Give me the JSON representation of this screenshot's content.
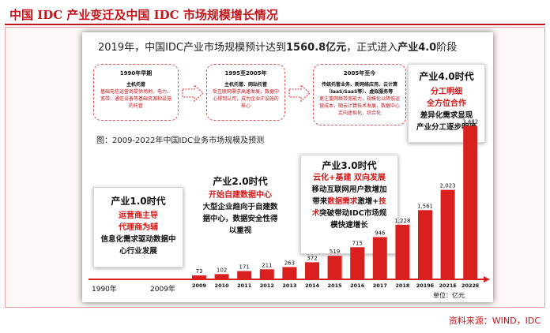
{
  "title": "中国 IDC 产业变迁及中国 IDC 市场规模增长情况",
  "headline": {
    "prefix": "2019年，中国IDC产业市场规模预计达到",
    "value": "1560.8亿元",
    "middle": "，正式进入",
    "phase": "产业4.0",
    "suffix": "阶段"
  },
  "stages": [
    {
      "period": "1990年早期",
      "label": "主机托管",
      "desc": "基础电信运营商提供场地、电力、宽带、通信设备等基础资源和设施的托管"
    },
    {
      "period": "1995至2005年",
      "label": "主机托管、网站托管",
      "desc": "受互联网需求高速发展，数据中心得到认可，成为企业IT设施的核心"
    },
    {
      "period": "2005年至今",
      "label": "传统托管业务、新网络应用、云计算（IaaS/SaaS等）、虚拟服务等",
      "desc": "更注重网络带宽能力，规模化以降低运营成本，随云计算技术发展，数据中心走向虚拟化、综合化"
    }
  ],
  "eras": {
    "era1": {
      "name": "产业1.0时代",
      "red": [
        "运营商主导",
        "代理商为辅"
      ],
      "body": [
        "信息化需求驱动数据中",
        "心行业发展"
      ]
    },
    "era2": {
      "name": "产业2.0时代",
      "red": [
        "开始自建数据中心"
      ],
      "body": [
        "大型企业趋向于自建数",
        "据中心，数据安全性得",
        "以重视"
      ]
    },
    "era3": {
      "name": "产业3.0时代",
      "red": [
        "云化+基建 双向发展"
      ],
      "line1": "移动互联网用户数增加",
      "line2a": "带来",
      "line2b": "数据需求",
      "line2c": "激增+",
      "line2d": "技",
      "line3a": "术",
      "line3b": "突破带动IDC市场规",
      "line4": "模快速增长"
    },
    "era4": {
      "name": "产业4.0时代",
      "red": [
        "分工明细",
        "全方位合作"
      ],
      "body": [
        "差异化需求显现",
        "产业分工逐步明确"
      ]
    }
  },
  "figure_caption": "图：2009-2022年中国IDC业务市场规模及预测",
  "axis_years": {
    "start": "1990年",
    "end": "2009年"
  },
  "unit": "单位：亿元",
  "chart_data": {
    "type": "bar",
    "categories": [
      "2009",
      "2010",
      "2011",
      "2012",
      "2013",
      "2014",
      "2015",
      "2016",
      "2017",
      "2018",
      "2019E",
      "2021E",
      "2022E"
    ],
    "values": [
      73,
      102,
      171,
      211,
      263,
      372,
      519,
      715,
      946,
      1228,
      1561,
      2023,
      3482
    ],
    "value_labels": [
      "73",
      "102",
      "171",
      "211",
      "263",
      "372",
      "519",
      "715",
      "946",
      "1,228",
      "1,561",
      "2,023",
      "3,482"
    ],
    "ylim": [
      0,
      3600
    ],
    "bar_color": "#d9201f"
  },
  "source": "资料来源：WIND，IDC"
}
